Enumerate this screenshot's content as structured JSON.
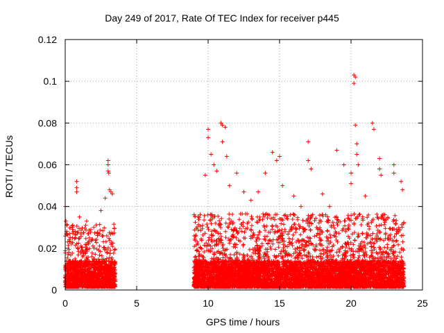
{
  "chart_data": {
    "type": "scatter",
    "title": "Day 249 of 2017, Rate Of TEC Index for receiver p445",
    "xlabel": "GPS time / hours",
    "ylabel": "ROTI / TECUs",
    "xlim": [
      0,
      25
    ],
    "ylim": [
      0,
      0.12
    ],
    "xticks": [
      0,
      5,
      10,
      15,
      20,
      25
    ],
    "yticks": [
      0,
      0.02,
      0.04,
      0.06,
      0.08,
      0.1,
      0.12
    ],
    "ytick_labels": [
      "0",
      "0.02",
      "0.04",
      "0.06",
      "0.08",
      "0.1",
      "0.12"
    ],
    "grid": true,
    "marker": "+",
    "color": "#ff0000",
    "series": [
      {
        "name": "ROTI",
        "segments": [
          {
            "x_start": 0.0,
            "x_end": 3.5,
            "typical_max": 0.03
          },
          {
            "x_start": 9.0,
            "x_end": 23.7,
            "typical_max": 0.035
          }
        ],
        "notable_points": [
          [
            0.0,
            0.04
          ],
          [
            0.05,
            0.033
          ],
          [
            0.1,
            0.031
          ],
          [
            0.3,
            0.027
          ],
          [
            0.5,
            0.025
          ],
          [
            0.8,
            0.052
          ],
          [
            0.8,
            0.049
          ],
          [
            0.8,
            0.047
          ],
          [
            1.0,
            0.035
          ],
          [
            1.5,
            0.033
          ],
          [
            2.0,
            0.03
          ],
          [
            2.5,
            0.038
          ],
          [
            2.8,
            0.044
          ],
          [
            3.0,
            0.062
          ],
          [
            3.0,
            0.06
          ],
          [
            3.0,
            0.057
          ],
          [
            3.05,
            0.056
          ],
          [
            3.1,
            0.048
          ],
          [
            3.2,
            0.047
          ],
          [
            3.3,
            0.046
          ],
          [
            9.3,
            0.022
          ],
          [
            9.8,
            0.055
          ],
          [
            10.0,
            0.077
          ],
          [
            10.0,
            0.073
          ],
          [
            10.2,
            0.065
          ],
          [
            10.4,
            0.06
          ],
          [
            10.6,
            0.057
          ],
          [
            10.9,
            0.08
          ],
          [
            11.0,
            0.079
          ],
          [
            11.2,
            0.078
          ],
          [
            11.0,
            0.071
          ],
          [
            11.3,
            0.064
          ],
          [
            11.5,
            0.05
          ],
          [
            12.0,
            0.056
          ],
          [
            12.5,
            0.047
          ],
          [
            13.0,
            0.043
          ],
          [
            13.5,
            0.047
          ],
          [
            14.0,
            0.056
          ],
          [
            14.5,
            0.066
          ],
          [
            14.8,
            0.062
          ],
          [
            15.0,
            0.064
          ],
          [
            15.2,
            0.05
          ],
          [
            16.0,
            0.045
          ],
          [
            16.5,
            0.04
          ],
          [
            17.0,
            0.071
          ],
          [
            17.0,
            0.062
          ],
          [
            17.2,
            0.058
          ],
          [
            18.0,
            0.046
          ],
          [
            18.5,
            0.04
          ],
          [
            19.0,
            0.067
          ],
          [
            19.5,
            0.06
          ],
          [
            20.0,
            0.056
          ],
          [
            20.0,
            0.051
          ],
          [
            20.2,
            0.103
          ],
          [
            20.3,
            0.102
          ],
          [
            20.2,
            0.099
          ],
          [
            20.3,
            0.079
          ],
          [
            20.4,
            0.07
          ],
          [
            20.4,
            0.065
          ],
          [
            20.5,
            0.06
          ],
          [
            21.0,
            0.045
          ],
          [
            21.5,
            0.08
          ],
          [
            21.6,
            0.077
          ],
          [
            22.0,
            0.063
          ],
          [
            22.0,
            0.058
          ],
          [
            22.1,
            0.055
          ],
          [
            23.0,
            0.06
          ],
          [
            23.0,
            0.056
          ],
          [
            23.5,
            0.052
          ],
          [
            23.6,
            0.048
          ]
        ]
      }
    ]
  }
}
